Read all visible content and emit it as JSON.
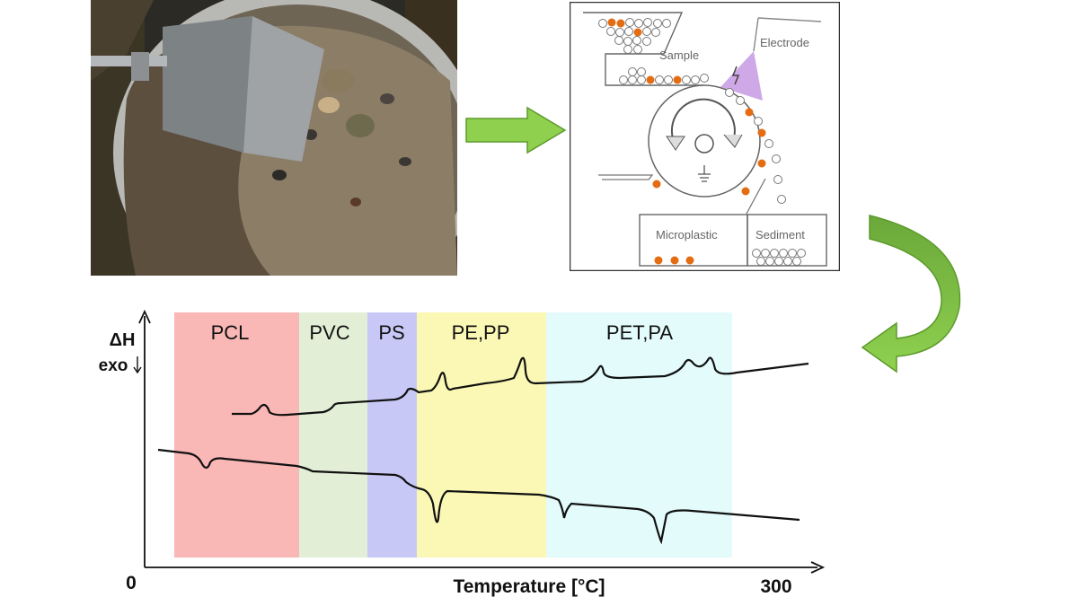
{
  "schematic": {
    "sample_label": "Sample",
    "electrode_label": "Electrode",
    "microplastic_label": "Microplastic",
    "sediment_label": "Sediment"
  },
  "dsc": {
    "regions": [
      "PCL",
      "PVC",
      "PS",
      "PE,PP",
      "PET,PA"
    ],
    "y_label_top": "ΔH",
    "y_label_bottom": "exo",
    "x_label": "Temperature [°C]",
    "x_min_label": "0",
    "x_max_label": "300"
  },
  "colors": {
    "pcl": "#f9b7b5",
    "pvc": "#e2efd6",
    "ps": "#c8c8f7",
    "pe_pp": "#fbf8b5",
    "pet_pa": "#e3fbfb",
    "arrow_green": "#8fd14f",
    "microplastic_orange": "#e46c12",
    "electrode_purple": "#c99ee4"
  }
}
